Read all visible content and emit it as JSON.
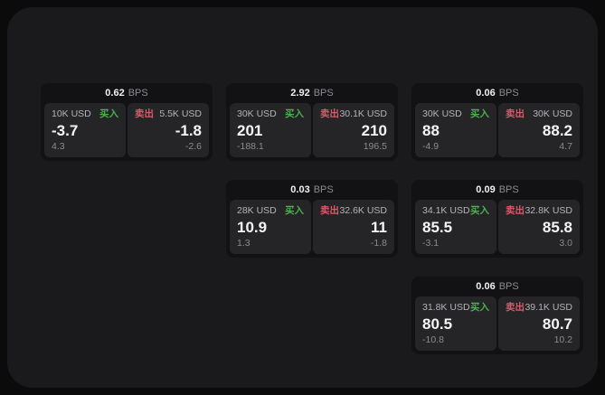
{
  "labels": {
    "bps_unit": "BPS",
    "buy": "买入",
    "sell": "卖出"
  },
  "colors": {
    "background": "#0b0b0c",
    "panel": "#1a1a1c",
    "card": "#121214",
    "tile": "#252528",
    "buy_green": "#4caf50",
    "sell_red": "#d95969"
  },
  "cards": [
    {
      "bps": "0.62",
      "buy": {
        "amount": "10K USD",
        "price": "-3.7",
        "change": "4.3"
      },
      "sell": {
        "amount": "5.5K USD",
        "price": "-1.8",
        "change": "-2.6"
      }
    },
    {
      "bps": "2.92",
      "buy": {
        "amount": "30K USD",
        "price": "201",
        "change": "-188.1"
      },
      "sell": {
        "amount": "30.1K USD",
        "price": "210",
        "change": "196.5"
      }
    },
    {
      "bps": "0.06",
      "buy": {
        "amount": "30K USD",
        "price": "88",
        "change": "-4.9"
      },
      "sell": {
        "amount": "30K USD",
        "price": "88.2",
        "change": "4.7"
      }
    },
    {
      "bps": "0.03",
      "buy": {
        "amount": "28K USD",
        "price": "10.9",
        "change": "1.3"
      },
      "sell": {
        "amount": "32.6K USD",
        "price": "11",
        "change": "-1.8"
      }
    },
    {
      "bps": "0.09",
      "buy": {
        "amount": "34.1K USD",
        "price": "85.5",
        "change": "-3.1"
      },
      "sell": {
        "amount": "32.8K USD",
        "price": "85.8",
        "change": "3.0"
      }
    },
    {
      "bps": "0.06",
      "buy": {
        "amount": "31.8K USD",
        "price": "80.5",
        "change": "-10.8"
      },
      "sell": {
        "amount": "39.1K USD",
        "price": "80.7",
        "change": "10.2"
      }
    }
  ]
}
